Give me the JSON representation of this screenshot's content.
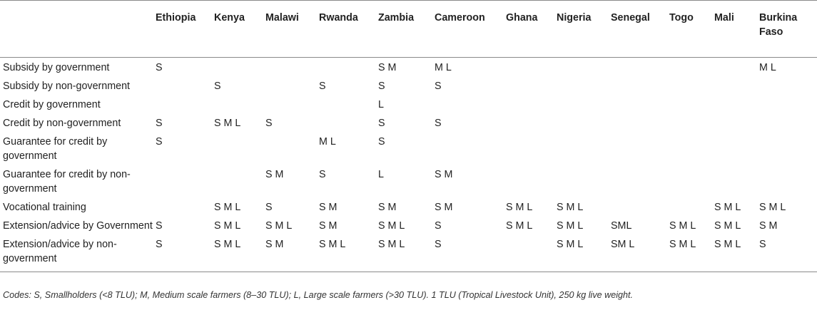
{
  "table": {
    "columns": [
      "",
      "Ethiopia",
      "Kenya",
      "Malawi",
      "Rwanda",
      "Zambia",
      "Cameroon",
      "Ghana",
      "Nigeria",
      "Senegal",
      "Togo",
      "Mali",
      "Burkina Faso"
    ],
    "rows": [
      {
        "label": "Subsidy by government",
        "cells": [
          "S",
          "",
          "",
          "",
          "S M",
          "M L",
          "",
          "",
          "",
          "",
          "",
          "M L"
        ]
      },
      {
        "label": "Subsidy by non-government",
        "cells": [
          "",
          "S",
          "",
          "S",
          "S",
          "S",
          "",
          "",
          "",
          "",
          "",
          ""
        ]
      },
      {
        "label": "Credit by government",
        "cells": [
          "",
          "",
          "",
          "",
          "L",
          "",
          "",
          "",
          "",
          "",
          "",
          ""
        ]
      },
      {
        "label": "Credit by non-government",
        "cells": [
          "S",
          "S M L",
          "S",
          "",
          "S",
          "S",
          "",
          "",
          "",
          "",
          "",
          ""
        ]
      },
      {
        "label": "Guarantee for credit by government",
        "cells": [
          "S",
          "",
          "",
          "M L",
          "S",
          "",
          "",
          "",
          "",
          "",
          "",
          ""
        ]
      },
      {
        "label": "Guarantee for credit by non-government",
        "cells": [
          "",
          "",
          "S M",
          "S",
          "L",
          "S M",
          "",
          "",
          "",
          "",
          "",
          ""
        ]
      },
      {
        "label": "Vocational training",
        "cells": [
          "",
          "S M L",
          "S",
          "S M",
          "S M",
          "S M",
          "S M L",
          "S M L",
          "",
          "",
          "S M L",
          "S M L"
        ]
      },
      {
        "label": "Extension/advice by Government",
        "cells": [
          "S",
          "S M L",
          "S M L",
          "S M",
          "S M L",
          "S",
          "S M L",
          "S M L",
          "SML",
          "S M L",
          "S M L",
          "S M"
        ]
      },
      {
        "label": "Extension/advice by non-government",
        "cells": [
          "S",
          "S M L",
          "S M",
          "S M L",
          "S M L",
          "S",
          "",
          "S M L",
          "SM L",
          "S M L",
          "S M L",
          "S"
        ]
      }
    ]
  },
  "footnote": "Codes: S, Smallholders (<8 TLU); M, Medium scale farmers (8–30 TLU); L, Large scale farmers (>30 TLU). 1 TLU (Tropical Livestock Unit), 250 kg live weight."
}
